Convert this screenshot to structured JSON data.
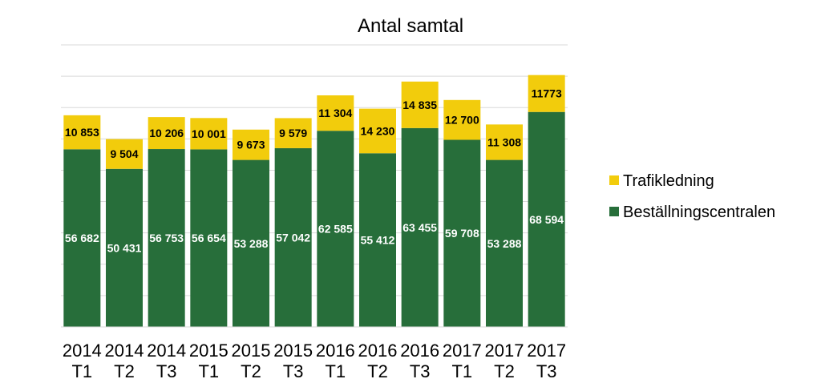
{
  "chart_data": {
    "type": "bar",
    "stacked": true,
    "title": "Antal samtal",
    "xlabel": "",
    "ylabel": "",
    "ylim": [
      0,
      90000
    ],
    "grid": true,
    "legend_position": "right",
    "categories": [
      [
        "2014",
        "T1"
      ],
      [
        "2014",
        "T2"
      ],
      [
        "2014",
        "T3"
      ],
      [
        "2015",
        "T1"
      ],
      [
        "2015",
        "T2"
      ],
      [
        "2015",
        "T3"
      ],
      [
        "2016",
        "T1"
      ],
      [
        "2016",
        "T2"
      ],
      [
        "2016",
        "T3"
      ],
      [
        "2017",
        "T1"
      ],
      [
        "2017",
        "T2"
      ],
      [
        "2017",
        "T3"
      ]
    ],
    "series": [
      {
        "name": "Beställningscentralen",
        "color": "#276E3A",
        "values": [
          56682,
          50431,
          56753,
          56654,
          53288,
          57042,
          62585,
          55412,
          63455,
          59708,
          53288,
          68594
        ],
        "labels": [
          "56 682",
          "50 431",
          "56 753",
          "56 654",
          "53 288",
          "57 042",
          "62 585",
          "55 412",
          "63 455",
          "59 708",
          "53 288",
          "68 594"
        ]
      },
      {
        "name": "Trafikledning",
        "color": "#F2CC0C",
        "values": [
          10853,
          9504,
          10206,
          10001,
          9673,
          9579,
          11304,
          14230,
          14835,
          12700,
          11308,
          11773
        ],
        "labels": [
          "10 853",
          "9 504",
          "10 206",
          "10 001",
          "9 673",
          "9 579",
          "11 304",
          "14 230",
          "14 835",
          "12 700",
          "11 308",
          "11773"
        ]
      }
    ]
  }
}
